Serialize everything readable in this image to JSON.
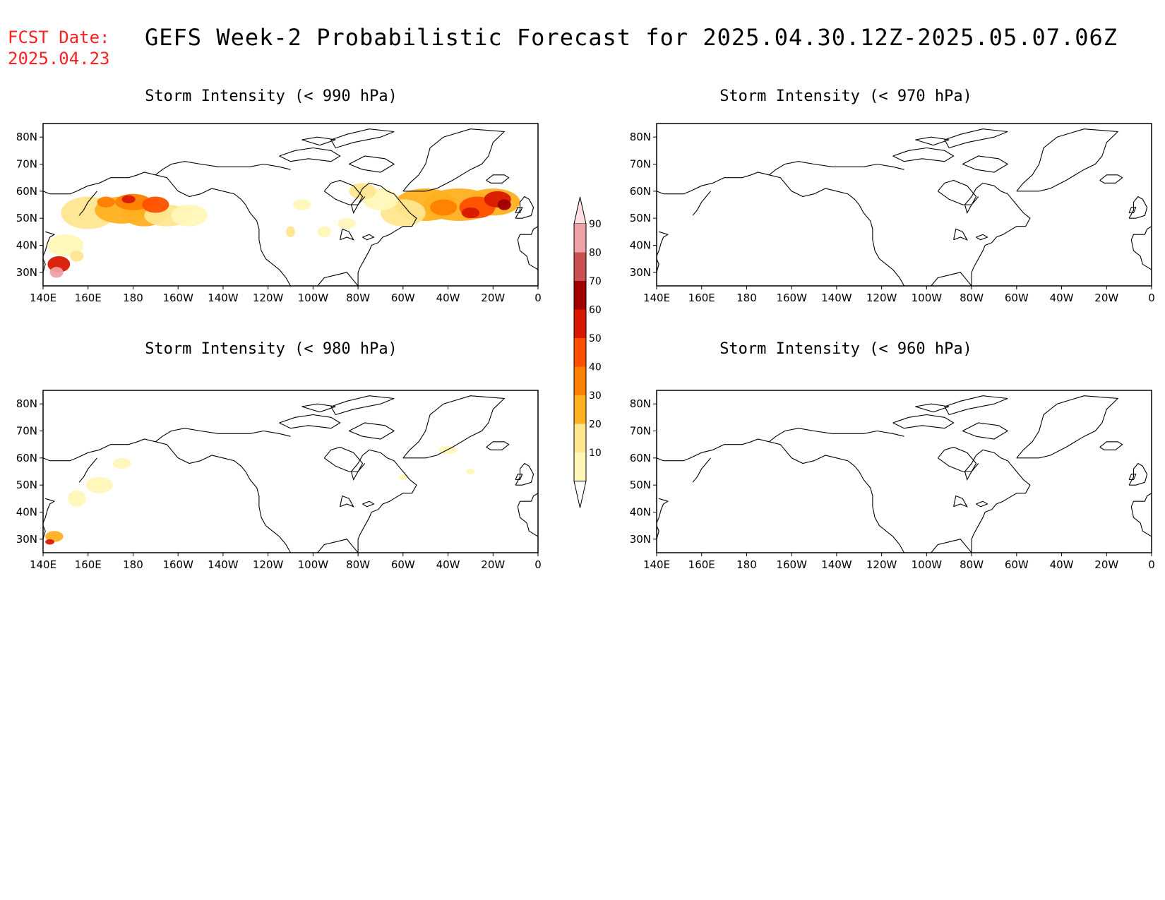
{
  "header": {
    "fcst_label": "FCST Date:",
    "fcst_date": "2025.04.23",
    "title": "GEFS Week-2 Probabilistic Forecast for 2025.04.30.12Z-2025.05.07.06Z"
  },
  "axes": {
    "x_ticks": [
      "140E",
      "160E",
      "180",
      "160W",
      "140W",
      "120W",
      "100W",
      "80W",
      "60W",
      "40W",
      "20W",
      "0"
    ],
    "y_ticks": [
      "80N",
      "70N",
      "60N",
      "50N",
      "40N",
      "30N"
    ]
  },
  "panels": [
    {
      "title": "Storm Intensity (< 990 hPa)",
      "has_shading": true,
      "shading_level": "high"
    },
    {
      "title": "Storm Intensity (< 970 hPa)",
      "has_shading": false
    },
    {
      "title": "Storm Intensity (< 980 hPa)",
      "has_shading": true,
      "shading_level": "low"
    },
    {
      "title": "Storm Intensity (< 960 hPa)",
      "has_shading": false
    }
  ],
  "colorbar": {
    "labels": [
      "10",
      "20",
      "30",
      "40",
      "50",
      "60",
      "70",
      "80",
      "90"
    ],
    "colors": [
      "#fff7b8",
      "#ffe690",
      "#ffb020",
      "#ff8000",
      "#ff5000",
      "#d81800",
      "#a00000",
      "#c85050",
      "#f0a0a8",
      "#fde0e4"
    ]
  }
}
